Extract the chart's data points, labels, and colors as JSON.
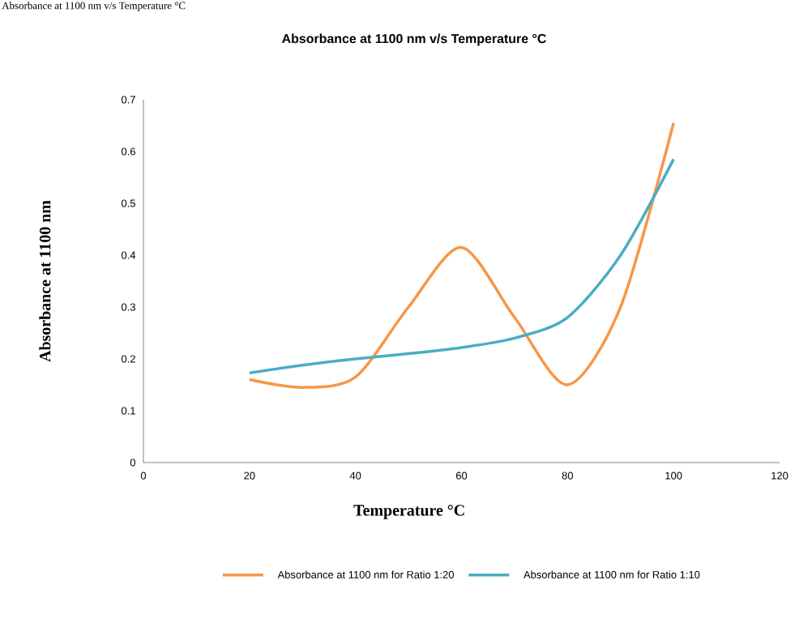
{
  "chart_data": {
    "type": "line",
    "title": "Absorbance at 1100 nm v/s Temperature °C",
    "xlabel": "Temperature °C",
    "ylabel": "Absorbance at 1100 nm",
    "annotations": [
      "Absorbance at 1100 nm v/s Temperature °C"
    ],
    "x": [
      20,
      30,
      40,
      50,
      60,
      70,
      80,
      90,
      100
    ],
    "series": [
      {
        "name": "Absorbance at 1100 nm for Ratio 1:20",
        "color": "#f79646",
        "values": [
          0.16,
          0.145,
          0.165,
          0.3,
          0.415,
          0.28,
          0.15,
          0.3,
          0.655
        ]
      },
      {
        "name": "Absorbance at 1100 nm for Ratio 1:10",
        "color": "#4bacc6",
        "values": [
          0.173,
          0.188,
          0.2,
          0.21,
          0.222,
          0.24,
          0.28,
          0.4,
          0.585
        ]
      }
    ],
    "xlim": [
      0,
      120
    ],
    "ylim": [
      0,
      0.7
    ],
    "xticks": [
      0,
      20,
      40,
      60,
      80,
      100,
      120
    ],
    "yticks": [
      0,
      0.1,
      0.2,
      0.3,
      0.4,
      0.5,
      0.6,
      0.7
    ],
    "grid": false,
    "legend": "bottom",
    "marker": "none",
    "line_style": "solid"
  }
}
